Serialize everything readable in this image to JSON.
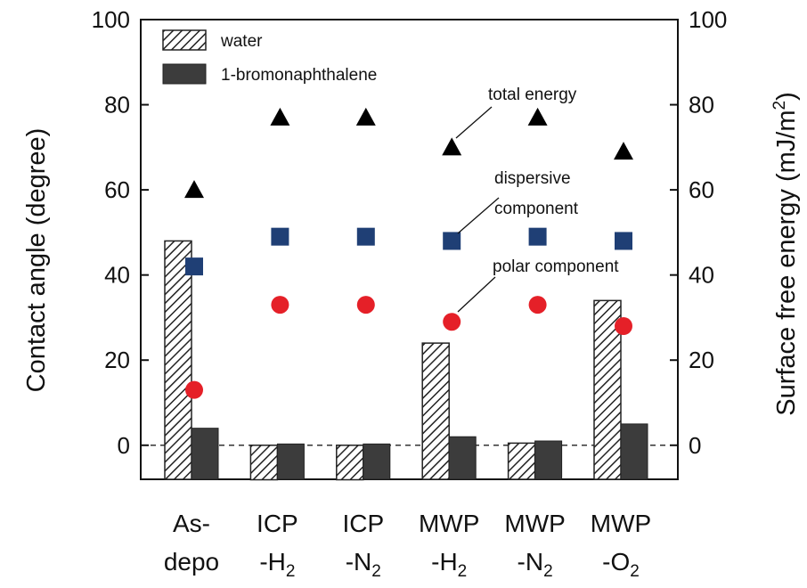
{
  "chart_data": {
    "type": "bar",
    "categories": [
      {
        "line1": "As-",
        "line2_main": "depo",
        "line2_sub": ""
      },
      {
        "line1": "ICP",
        "line2_main": "-H",
        "line2_sub": "2"
      },
      {
        "line1": "ICP",
        "line2_main": "-N",
        "line2_sub": "2"
      },
      {
        "line1": "MWP",
        "line2_main": "-H",
        "line2_sub": "2"
      },
      {
        "line1": "MWP",
        "line2_main": "-N",
        "line2_sub": "2"
      },
      {
        "line1": "MWP",
        "line2_main": "-O",
        "line2_sub": "2"
      }
    ],
    "bar_series": [
      {
        "name": "water",
        "axis": "left",
        "pattern": "hatch",
        "values": [
          48,
          0,
          0,
          24,
          0.5,
          34
        ]
      },
      {
        "name": "1-bromonaphthalene",
        "axis": "left",
        "color": "#3c3c3c",
        "values": [
          4,
          0.3,
          0.3,
          2,
          1,
          5
        ]
      }
    ],
    "marker_series": [
      {
        "name": "total energy",
        "axis": "right",
        "marker": "triangle",
        "color": "#000000",
        "values": [
          60,
          77,
          77,
          70,
          77,
          69
        ]
      },
      {
        "name": "dispersive component",
        "axis": "right",
        "marker": "square",
        "color": "#1f3f75",
        "values": [
          42,
          49,
          49,
          48,
          49,
          48
        ]
      },
      {
        "name": "polar component",
        "axis": "right",
        "marker": "circle",
        "color": "#e52028",
        "values": [
          13,
          33,
          33,
          29,
          33,
          28
        ]
      }
    ],
    "ylabel_left": "Contact angle (degree)",
    "ylabel_right_main": "Surface free energy (mJ/m",
    "ylabel_right_sup": "2",
    "ylabel_right_close": ")",
    "ylim": [
      -8,
      100
    ],
    "yticks": [
      0,
      20,
      40,
      60,
      80,
      100
    ],
    "tick_labels": [
      "0",
      "20",
      "40",
      "60",
      "80",
      "100"
    ],
    "zero_line": "dashed",
    "legend": {
      "position": "top-left",
      "entries": [
        "water",
        "1-bromonaphthalene"
      ]
    },
    "annotations": {
      "total": "total energy",
      "dispersive_line1": "dispersive",
      "dispersive_line2": "component",
      "polar": "polar component"
    }
  }
}
